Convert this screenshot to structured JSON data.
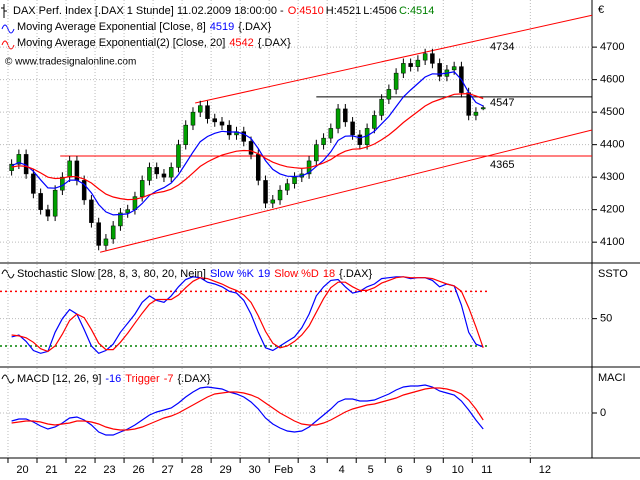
{
  "currency": "€",
  "copyright": "© www.tradesignalonline.com",
  "instrument_tag": "{.DAX}",
  "chart_data": [
    {
      "type": "candlestick",
      "title": "DAX Perf. Index [.DAX  1 Stunde] 11.02.2009 18:00:00 -",
      "ohlc_labels": [
        "O:4510",
        "H:4521",
        "L:4506",
        "C:4514"
      ],
      "xlim": [
        -1.1,
        80.5
      ],
      "ylim": [
        4039,
        4845
      ],
      "yticks": [
        4100,
        4200,
        4300,
        4400,
        4500,
        4600,
        4700
      ],
      "grid": true,
      "up_color": "#00a000",
      "down_color": "#000000",
      "open": [
        4320,
        4340,
        4370,
        4310,
        4250,
        4200,
        4180,
        4260,
        4300,
        4350,
        4290,
        4230,
        4160,
        4090,
        4110,
        4150,
        4190,
        4200,
        4240,
        4290,
        4330,
        4310,
        4300,
        4330,
        4400,
        4460,
        4500,
        4520,
        4480,
        4470,
        4460,
        4430,
        4440,
        4410,
        4370,
        4290,
        4220,
        4230,
        4260,
        4280,
        4300,
        4310,
        4350,
        4400,
        4420,
        4450,
        4510,
        4470,
        4430,
        4400,
        4450,
        4490,
        4540,
        4570,
        4620,
        4650,
        4640,
        4660,
        4680,
        4650,
        4610,
        4630,
        4640,
        4560,
        4490,
        4510
      ],
      "high": [
        4355,
        4385,
        4385,
        4325,
        4265,
        4215,
        4275,
        4315,
        4365,
        4365,
        4305,
        4245,
        4175,
        4125,
        4165,
        4205,
        4215,
        4255,
        4305,
        4345,
        4345,
        4325,
        4345,
        4415,
        4475,
        4515,
        4535,
        4535,
        4495,
        4485,
        4475,
        4455,
        4455,
        4425,
        4385,
        4305,
        4245,
        4275,
        4295,
        4315,
        4325,
        4365,
        4415,
        4435,
        4465,
        4525,
        4525,
        4485,
        4445,
        4465,
        4505,
        4555,
        4585,
        4635,
        4665,
        4665,
        4675,
        4695,
        4695,
        4665,
        4645,
        4655,
        4655,
        4575,
        4515,
        4521
      ],
      "low": [
        4305,
        4325,
        4295,
        4235,
        4185,
        4165,
        4165,
        4245,
        4285,
        4275,
        4215,
        4145,
        4075,
        4075,
        4095,
        4135,
        4175,
        4185,
        4225,
        4275,
        4295,
        4285,
        4285,
        4315,
        4385,
        4445,
        4485,
        4465,
        4455,
        4445,
        4415,
        4415,
        4395,
        4355,
        4275,
        4205,
        4205,
        4215,
        4245,
        4265,
        4285,
        4295,
        4335,
        4385,
        4405,
        4435,
        4455,
        4415,
        4385,
        4385,
        4435,
        4475,
        4525,
        4555,
        4605,
        4625,
        4625,
        4645,
        4635,
        4595,
        4595,
        4615,
        4545,
        4475,
        4475,
        4506
      ],
      "close": [
        4340,
        4370,
        4310,
        4250,
        4200,
        4180,
        4260,
        4300,
        4350,
        4290,
        4230,
        4160,
        4090,
        4110,
        4150,
        4190,
        4200,
        4240,
        4290,
        4330,
        4310,
        4300,
        4330,
        4400,
        4460,
        4500,
        4520,
        4480,
        4470,
        4460,
        4430,
        4440,
        4410,
        4370,
        4290,
        4220,
        4230,
        4260,
        4280,
        4300,
        4310,
        4350,
        4400,
        4420,
        4450,
        4510,
        4470,
        4430,
        4400,
        4450,
        4490,
        4540,
        4570,
        4620,
        4650,
        4640,
        4660,
        4680,
        4650,
        4610,
        4630,
        4640,
        4560,
        4490,
        4500,
        4514
      ],
      "series": [
        {
          "name": "Moving Average Exponential [Close, 8]",
          "color": "#0000ff",
          "values": [
            4335,
            4345,
            4337,
            4318,
            4292,
            4267,
            4266,
            4274,
            4291,
            4291,
            4278,
            4252,
            4216,
            4193,
            4184,
            4185,
            4187,
            4199,
            4219,
            4244,
            4258,
            4268,
            4282,
            4308,
            4342,
            4377,
            4409,
            4425,
            4435,
            4441,
            4439,
            4439,
            4433,
            4419,
            4388,
            4351,
            4324,
            4310,
            4303,
            4302,
            4304,
            4314,
            4333,
            4352,
            4378,
            4413,
            4426,
            4427,
            4421,
            4427,
            4441,
            4464,
            4487,
            4517,
            4547,
            4568,
            4588,
            4608,
            4618,
            4617,
            4620,
            4624,
            4600,
            4560,
            4530,
            4519
          ]
        },
        {
          "name": "Moving Average Exponential(2) [Close, 20]",
          "color": "#ff0000",
          "values": [
            4331,
            4335,
            4333,
            4325,
            4313,
            4300,
            4296,
            4297,
            4302,
            4301,
            4294,
            4282,
            4264,
            4248,
            4239,
            4234,
            4231,
            4232,
            4237,
            4246,
            4252,
            4256,
            4263,
            4276,
            4293,
            4313,
            4333,
            4347,
            4358,
            4368,
            4374,
            4380,
            4382,
            4381,
            4372,
            4358,
            4346,
            4338,
            4332,
            4329,
            4327,
            4329,
            4336,
            4344,
            4354,
            4369,
            4380,
            4386,
            4387,
            4393,
            4402,
            4415,
            4430,
            4448,
            4468,
            4485,
            4502,
            4519,
            4531,
            4539,
            4547,
            4555,
            4556,
            4557,
            4550,
            4542
          ]
        }
      ],
      "trendlines": [
        {
          "x": [
            25.8,
            80.5
          ],
          "y": [
            4528,
            4798
          ],
          "color": "#ff0000",
          "label": "4734"
        },
        {
          "x": [
            12.7,
            80.5
          ],
          "y": [
            4069,
            4445
          ],
          "color": "#ff0000"
        }
      ],
      "hlines": [
        {
          "value": 4365,
          "start": 7.2,
          "color": "#ff0000",
          "label": "4365"
        },
        {
          "value": 4547,
          "start": 42.5,
          "color": "#000000",
          "label": "4547"
        }
      ]
    },
    {
      "type": "line",
      "title": "Stochastic Slow [28, 8, 3, 80, 20, Nein]",
      "axis_label": "SSTO",
      "xlim": [
        -1.1,
        80.5
      ],
      "ylim": [
        -2,
        110
      ],
      "yticks": [
        50
      ],
      "grid": true,
      "series": [
        {
          "name": "Slow %K",
          "color": "#0000ff",
          "values": [
            30,
            32,
            25,
            15,
            12,
            14,
            35,
            50,
            60,
            55,
            38,
            20,
            12,
            15,
            22,
            35,
            45,
            55,
            68,
            75,
            70,
            68,
            75,
            85,
            93,
            96,
            95,
            90,
            88,
            85,
            80,
            78,
            70,
            55,
            35,
            18,
            15,
            20,
            25,
            30,
            40,
            55,
            75,
            85,
            92,
            93,
            85,
            78,
            80,
            85,
            88,
            94,
            95,
            96,
            96,
            94,
            95,
            95,
            92,
            85,
            88,
            86,
            65,
            35,
            22,
            19
          ]
        },
        {
          "name": "Slow %D",
          "color": "#ff0000",
          "values": [
            32,
            31,
            29,
            24,
            17,
            14,
            20,
            33,
            48,
            55,
            51,
            38,
            23,
            16,
            16,
            24,
            34,
            45,
            56,
            66,
            71,
            71,
            71,
            76,
            84,
            91,
            95,
            94,
            91,
            88,
            84,
            81,
            76,
            68,
            53,
            36,
            23,
            18,
            20,
            25,
            32,
            42,
            57,
            72,
            84,
            90,
            90,
            85,
            81,
            81,
            84,
            89,
            92,
            95,
            96,
            95,
            95,
            95,
            94,
            91,
            88,
            86,
            80,
            62,
            41,
            18
          ]
        }
      ],
      "levels": [
        {
          "value": 80,
          "color": "#ff0000"
        },
        {
          "value": 20,
          "color": "#008000"
        }
      ]
    },
    {
      "type": "line",
      "title": "MACD [12, 26, 9]",
      "axis_label": "MACI",
      "xlim": [
        -1.1,
        80.5
      ],
      "ylim": [
        -45,
        45
      ],
      "yticks": [
        0
      ],
      "grid": true,
      "xticks": [
        {
          "value": 0,
          "label": "20"
        },
        {
          "value": 4,
          "label": "21"
        },
        {
          "value": 8,
          "label": "22"
        },
        {
          "value": 12,
          "label": "23"
        },
        {
          "value": 16,
          "label": "26"
        },
        {
          "value": 20,
          "label": "27"
        },
        {
          "value": 24,
          "label": "28"
        },
        {
          "value": 28,
          "label": "29"
        },
        {
          "value": 32,
          "label": "30"
        },
        {
          "value": 36,
          "label": "Feb"
        },
        {
          "value": 40,
          "label": "3"
        },
        {
          "value": 44,
          "label": "4"
        },
        {
          "value": 48,
          "label": "5"
        },
        {
          "value": 52,
          "label": "6"
        },
        {
          "value": 56,
          "label": "9"
        },
        {
          "value": 60,
          "label": "10"
        },
        {
          "value": 64,
          "label": "11"
        },
        {
          "value": 72,
          "label": "12"
        }
      ],
      "series": [
        {
          "color": "#0000ff",
          "values": [
            -8,
            -6,
            -6,
            -9,
            -13,
            -16,
            -14,
            -10,
            -5,
            -4,
            -7,
            -12,
            -19,
            -22,
            -22,
            -19,
            -16,
            -12,
            -7,
            -2,
            1,
            3,
            5,
            10,
            16,
            21,
            25,
            26,
            25,
            24,
            21,
            19,
            16,
            11,
            4,
            -5,
            -11,
            -15,
            -18,
            -19,
            -18,
            -14,
            -8,
            -2,
            4,
            11,
            14,
            14,
            12,
            12,
            13,
            16,
            19,
            23,
            26,
            27,
            27,
            28,
            26,
            22,
            20,
            18,
            12,
            3,
            -7,
            -16
          ]
        },
        {
          "name": "Trigger",
          "color": "#ff0000",
          "values": [
            -10,
            -9,
            -8,
            -8,
            -9,
            -11,
            -12,
            -11,
            -10,
            -8,
            -8,
            -9,
            -11,
            -14,
            -16,
            -17,
            -17,
            -16,
            -14,
            -11,
            -8,
            -5,
            -3,
            0,
            4,
            8,
            12,
            16,
            19,
            20,
            21,
            21,
            20,
            18,
            15,
            10,
            5,
            0,
            -4,
            -8,
            -11,
            -12,
            -12,
            -10,
            -7,
            -3,
            1,
            4,
            6,
            8,
            9,
            11,
            13,
            15,
            18,
            20,
            22,
            24,
            25,
            25,
            24,
            22,
            19,
            13,
            4,
            -7
          ]
        }
      ]
    }
  ]
}
